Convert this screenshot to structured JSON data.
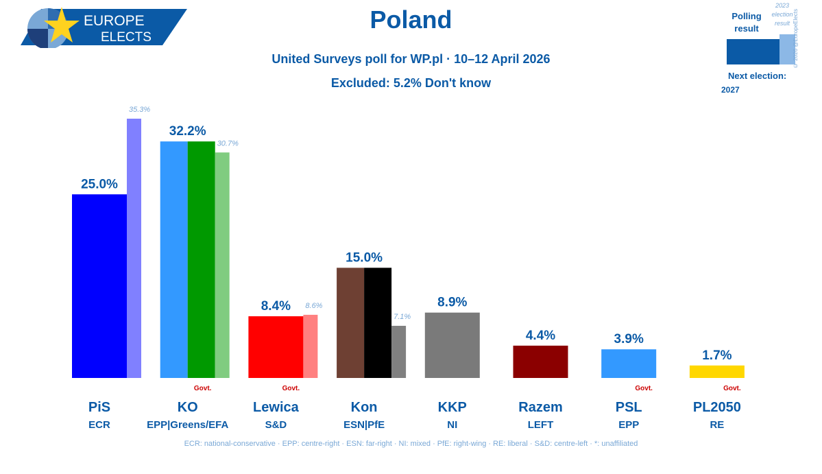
{
  "header": {
    "logo_line1": "EUROPE",
    "logo_line2": "ELECTS",
    "title": "Poland",
    "subtitle": "United Surveys poll for WP.pl · 10–12 April 2026",
    "excluded": "Excluded: 5.2% Don't know"
  },
  "legend": {
    "polling_label": "Polling result",
    "election_label": "2023 election result",
    "copyright": "© 2026 @EuropeElects",
    "next_election_label": "Next election:",
    "next_election_year": "2027"
  },
  "chart_data": {
    "type": "bar",
    "y_scale_max": 35.3,
    "govt_label": "Govt.",
    "categories": [
      "PiS",
      "KO",
      "Lewica",
      "Kon",
      "KKP",
      "Razem",
      "PSL",
      "PL2050"
    ],
    "groups": [
      "ECR",
      "EPP|Greens/EFA",
      "S&D",
      "ESN|PfE",
      "NI",
      "LEFT",
      "EPP",
      "RE"
    ],
    "series": [
      {
        "values": [
          25.0,
          32.2,
          8.4,
          15.0,
          8.9,
          4.4,
          3.9,
          1.7
        ],
        "labels": [
          "25.0%",
          "32.2%",
          "8.4%",
          "15.0%",
          "8.9%",
          "4.4%",
          "3.9%",
          "1.7%"
        ]
      },
      {
        "values": [
          35.3,
          30.7,
          8.6,
          7.1,
          null,
          null,
          null,
          null
        ],
        "labels": [
          "35.3%",
          "30.7%",
          "8.6%",
          "7.1%",
          "",
          "",
          "",
          ""
        ]
      }
    ],
    "government": [
      false,
      true,
      true,
      false,
      false,
      false,
      true,
      true
    ],
    "colors": {
      "PiS": [
        "#0000ff"
      ],
      "KO": [
        "#3399ff",
        "#009900"
      ],
      "Lewica": [
        "#ff0000"
      ],
      "Kon": [
        "#6e4033",
        "#000000"
      ],
      "KKP": [
        "#7a7a7a"
      ],
      "Razem": [
        "#8b0000"
      ],
      "PSL": [
        "#3399ff"
      ],
      "PL2050": [
        "#ffd700"
      ]
    },
    "prev_colors": {
      "PiS": "#8080ff",
      "KO": "#80cc80",
      "Lewica": "#ff8080",
      "Kon": "#808080"
    }
  },
  "footnote": "ECR: national-conservative · EPP: centre-right · ESN: far-right · NI: mixed · PfE: right-wing · RE: liberal · S&D: centre-left · *: unaffiliated"
}
